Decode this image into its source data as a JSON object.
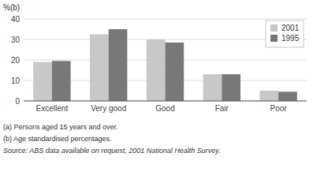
{
  "chart_data": {
    "type": "bar",
    "ylabel": "%(b)",
    "categories": [
      "Excellent",
      "Very good",
      "Good",
      "Fair",
      "Poor"
    ],
    "series": [
      {
        "name": "2001",
        "color": "#c8c8c8",
        "values": [
          19.0,
          32.5,
          30.0,
          13.0,
          5.0
        ]
      },
      {
        "name": "1995",
        "color": "#787878",
        "values": [
          19.5,
          35.0,
          28.5,
          13.0,
          4.5
        ]
      }
    ],
    "ylim": [
      0,
      40
    ],
    "yticks": [
      0,
      10,
      20,
      30,
      40
    ],
    "grid": true,
    "legend": "upper right",
    "annotations": [
      "(a) Persons aged 15 years and over.",
      "(b) Age standardised percentages.",
      "Source: ABS data available on request, 2001 National Health Survey."
    ]
  }
}
